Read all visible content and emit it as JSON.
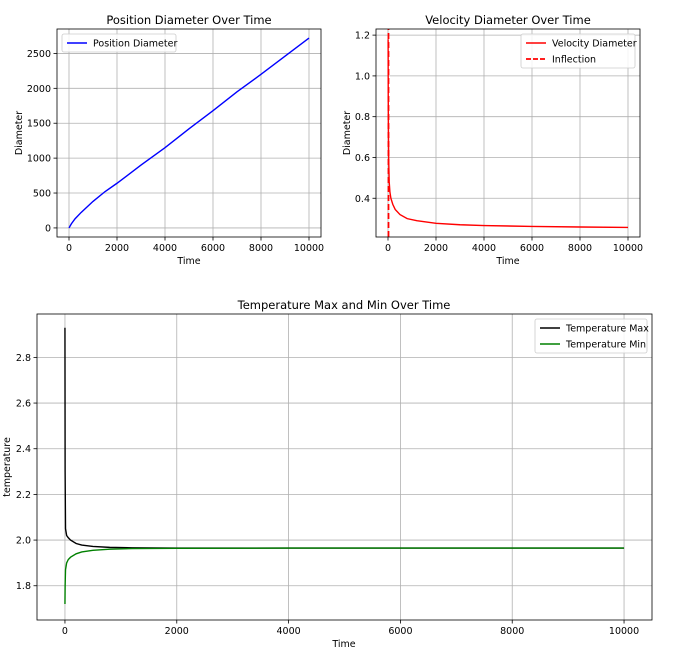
{
  "chart_data": [
    {
      "type": "line",
      "title": "Position Diameter Over Time",
      "xlabel": "Time",
      "ylabel": "Diameter",
      "xlim": [
        -500,
        10500
      ],
      "ylim": [
        -130,
        2850
      ],
      "xticks": [
        0,
        2000,
        4000,
        6000,
        8000,
        10000
      ],
      "xtick_labels": [
        "0",
        "2000",
        "4000",
        "6000",
        "8000",
        "10000"
      ],
      "yticks": [
        0,
        500,
        1000,
        1500,
        2000,
        2500
      ],
      "ytick_labels": [
        "0",
        "500",
        "1000",
        "1500",
        "2000",
        "2500"
      ],
      "grid": true,
      "legend_position": "top-left",
      "series": [
        {
          "name": "Position Diameter",
          "color": "#0000ff",
          "style": "solid",
          "x": [
            0,
            100,
            250,
            500,
            1000,
            1500,
            2000,
            3000,
            4000,
            5000,
            6000,
            7000,
            8000,
            9000,
            10000
          ],
          "y": [
            0,
            60,
            130,
            220,
            380,
            520,
            640,
            900,
            1150,
            1420,
            1680,
            1950,
            2200,
            2460,
            2720
          ]
        }
      ]
    },
    {
      "type": "line",
      "title": "Velocity Diameter Over Time",
      "xlabel": "Time",
      "ylabel": "Diameter",
      "xlim": [
        -500,
        10500
      ],
      "ylim": [
        0.21,
        1.23
      ],
      "xticks": [
        0,
        2000,
        4000,
        6000,
        8000,
        10000
      ],
      "xtick_labels": [
        "0",
        "2000",
        "4000",
        "6000",
        "8000",
        "10000"
      ],
      "yticks": [
        0.4,
        0.6,
        0.8,
        1.0,
        1.2
      ],
      "ytick_labels": [
        "0.4",
        "0.6",
        "0.8",
        "1.0",
        "1.2"
      ],
      "grid": true,
      "legend_position": "top-right",
      "series": [
        {
          "name": "Velocity Diameter",
          "color": "#ff0000",
          "style": "solid",
          "x": [
            5,
            10,
            20,
            30,
            50,
            80,
            120,
            200,
            300,
            500,
            800,
            1200,
            2000,
            3000,
            4000,
            6000,
            8000,
            10000
          ],
          "y": [
            1.18,
            0.9,
            0.7,
            0.58,
            0.48,
            0.43,
            0.4,
            0.37,
            0.345,
            0.32,
            0.3,
            0.29,
            0.277,
            0.27,
            0.266,
            0.262,
            0.259,
            0.257
          ]
        },
        {
          "name": "Inflection",
          "color": "#ff0000",
          "style": "dashed",
          "x": [
            20,
            20
          ],
          "y": [
            0.21,
            1.23
          ]
        }
      ]
    },
    {
      "type": "line",
      "title": "Temperature Max and Min Over Time",
      "xlabel": "Time",
      "ylabel": "temperature",
      "xlim": [
        -500,
        10500
      ],
      "ylim": [
        1.65,
        2.99
      ],
      "xticks": [
        0,
        2000,
        4000,
        6000,
        8000,
        10000
      ],
      "xtick_labels": [
        "0",
        "2000",
        "4000",
        "6000",
        "8000",
        "10000"
      ],
      "yticks": [
        1.8,
        2.0,
        2.2,
        2.4,
        2.6,
        2.8
      ],
      "ytick_labels": [
        "1.8",
        "2.0",
        "2.2",
        "2.4",
        "2.6",
        "2.8"
      ],
      "grid": true,
      "legend_position": "top-right",
      "series": [
        {
          "name": "Temperature Max",
          "color": "#000000",
          "style": "solid",
          "x": [
            0,
            3,
            10,
            30,
            60,
            100,
            200,
            300,
            500,
            800,
            1200,
            2000,
            4000,
            6000,
            8000,
            10000
          ],
          "y": [
            2.93,
            2.3,
            2.05,
            2.02,
            2.01,
            2.0,
            1.985,
            1.978,
            1.972,
            1.968,
            1.966,
            1.965,
            1.965,
            1.965,
            1.965,
            1.965
          ]
        },
        {
          "name": "Temperature Min",
          "color": "#008000",
          "style": "solid",
          "x": [
            0,
            3,
            10,
            30,
            60,
            100,
            200,
            300,
            500,
            800,
            1200,
            2000,
            4000,
            6000,
            8000,
            10000
          ],
          "y": [
            1.72,
            1.8,
            1.87,
            1.9,
            1.915,
            1.925,
            1.94,
            1.948,
            1.955,
            1.96,
            1.963,
            1.964,
            1.965,
            1.965,
            1.965,
            1.965
          ]
        }
      ]
    }
  ]
}
